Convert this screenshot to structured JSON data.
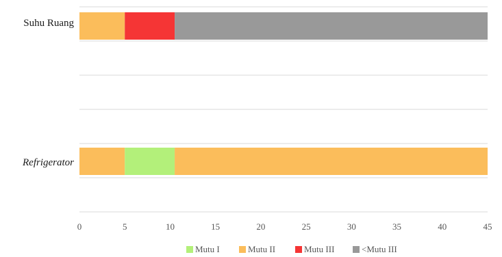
{
  "chart_data": {
    "type": "bar",
    "orientation": "horizontal",
    "stacked": true,
    "categories": [
      "Suhu Ruang",
      "Refrigerator"
    ],
    "category_italic": [
      false,
      true
    ],
    "series": [
      {
        "name": "Mutu I",
        "color": "#b3f07a",
        "values": [
          0,
          5.5
        ]
      },
      {
        "name": "Mutu II",
        "color": "#fbbd5b",
        "values": [
          5,
          39.5
        ]
      },
      {
        "name": "Mutu III",
        "color": "#f53535",
        "values": [
          5.5,
          0
        ]
      },
      {
        "name": "<Mutu III",
        "color": "#999999",
        "values": [
          34.5,
          0
        ]
      }
    ],
    "segment_order": [
      [
        "Mutu II",
        "Mutu III",
        "<Mutu III"
      ],
      [
        "Mutu II",
        "Mutu I",
        "Mutu II"
      ]
    ],
    "segment_values": [
      [
        5,
        5.5,
        34.5
      ],
      [
        5,
        5.5,
        34.5
      ]
    ],
    "x_ticks": [
      "0",
      "5",
      "10",
      "15",
      "20",
      "25",
      "30",
      "35",
      "40",
      "45"
    ],
    "xlim": [
      0,
      45
    ],
    "grid": true,
    "legend_position": "bottom",
    "title": "",
    "xlabel": "",
    "ylabel": ""
  }
}
